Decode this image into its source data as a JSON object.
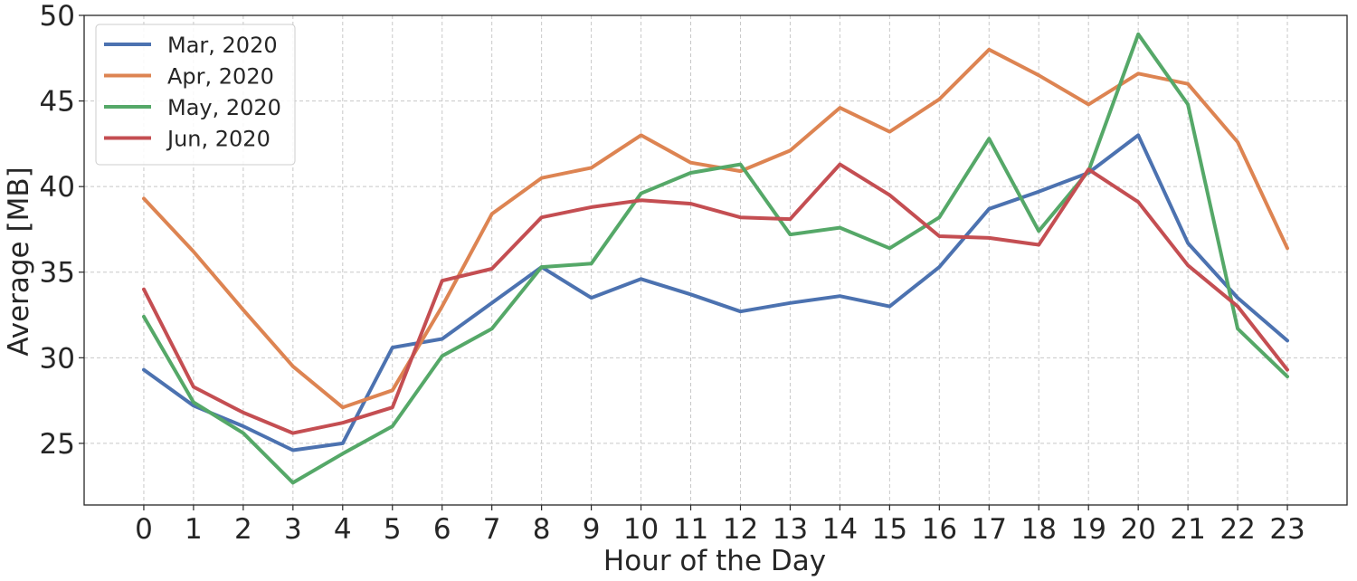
{
  "chart_data": {
    "type": "line",
    "title": "",
    "xlabel": "Hour of the Day",
    "ylabel": "Average [MB]",
    "x": [
      0,
      1,
      2,
      3,
      4,
      5,
      6,
      7,
      8,
      9,
      10,
      11,
      12,
      13,
      14,
      15,
      16,
      17,
      18,
      19,
      20,
      21,
      22,
      23
    ],
    "xlim": [
      -1.2,
      24.2
    ],
    "ylim": [
      21.4,
      50
    ],
    "yticks": [
      25,
      30,
      35,
      40,
      45,
      50
    ],
    "grid": true,
    "legend_position": "top-left",
    "series": [
      {
        "name": "Mar, 2020",
        "color": "#4c72b0",
        "values": [
          29.3,
          27.2,
          26.0,
          24.6,
          25.0,
          30.6,
          31.1,
          33.2,
          35.3,
          33.5,
          34.6,
          33.7,
          32.7,
          33.2,
          33.6,
          33.0,
          35.3,
          38.7,
          39.7,
          40.8,
          43.0,
          36.7,
          33.5,
          31.0
        ]
      },
      {
        "name": "Apr, 2020",
        "color": "#dd8452",
        "values": [
          39.3,
          36.2,
          32.8,
          29.5,
          27.1,
          28.1,
          33.0,
          38.4,
          40.5,
          41.1,
          43.0,
          41.4,
          40.9,
          42.1,
          44.6,
          43.2,
          45.1,
          48.0,
          46.5,
          44.8,
          46.6,
          46.0,
          42.6,
          36.4
        ]
      },
      {
        "name": "May, 2020",
        "color": "#55a868",
        "values": [
          32.4,
          27.4,
          25.6,
          22.7,
          24.4,
          26.0,
          30.1,
          31.7,
          35.3,
          35.5,
          39.6,
          40.8,
          41.3,
          37.2,
          37.6,
          36.4,
          38.2,
          42.8,
          37.4,
          40.9,
          48.9,
          44.8,
          31.7,
          28.9
        ]
      },
      {
        "name": "Jun, 2020",
        "color": "#c44e52",
        "values": [
          34.0,
          28.3,
          26.8,
          25.6,
          26.2,
          27.1,
          34.5,
          35.2,
          38.2,
          38.8,
          39.2,
          39.0,
          38.2,
          38.1,
          41.3,
          39.5,
          37.1,
          37.0,
          36.6,
          41.0,
          39.1,
          35.4,
          33.0,
          29.3
        ]
      }
    ]
  }
}
